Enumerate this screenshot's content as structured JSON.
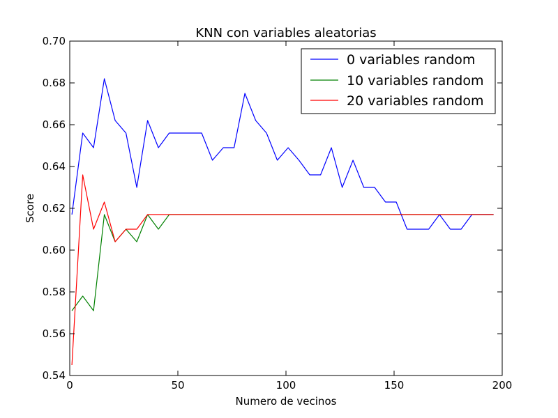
{
  "chart_data": {
    "type": "line",
    "title": "KNN con variables aleatorias",
    "xlabel": "Numero de vecinos",
    "ylabel": "Score",
    "xlim": [
      0,
      200
    ],
    "ylim": [
      0.54,
      0.7
    ],
    "xticks": [
      0,
      50,
      100,
      150,
      200
    ],
    "xtick_labels": [
      "0",
      "50",
      "100",
      "150",
      "200"
    ],
    "yticks": [
      0.54,
      0.56,
      0.58,
      0.6,
      0.62,
      0.64,
      0.66,
      0.68,
      0.7
    ],
    "ytick_labels": [
      "0.54",
      "0.56",
      "0.58",
      "0.60",
      "0.62",
      "0.64",
      "0.66",
      "0.68",
      "0.70"
    ],
    "grid": false,
    "legend_position": "top-right",
    "x": [
      1,
      6,
      11,
      16,
      21,
      26,
      31,
      36,
      41,
      46,
      51,
      56,
      61,
      66,
      71,
      76,
      81,
      86,
      91,
      96,
      101,
      106,
      111,
      116,
      121,
      126,
      131,
      136,
      141,
      146,
      151,
      156,
      161,
      166,
      171,
      176,
      181,
      186,
      191,
      196
    ],
    "series": [
      {
        "name": "0 variables random",
        "color": "#0000ff",
        "values": [
          0.617,
          0.656,
          0.649,
          0.682,
          0.662,
          0.656,
          0.63,
          0.662,
          0.649,
          0.656,
          0.656,
          0.656,
          0.656,
          0.643,
          0.649,
          0.649,
          0.675,
          0.662,
          0.656,
          0.643,
          0.649,
          0.643,
          0.636,
          0.636,
          0.649,
          0.63,
          0.643,
          0.63,
          0.63,
          0.623,
          0.623,
          0.61,
          0.61,
          0.61,
          0.617,
          0.61,
          0.61,
          0.617,
          0.617,
          0.617
        ]
      },
      {
        "name": "10 variables random",
        "color": "#008000",
        "values": [
          0.571,
          0.578,
          0.571,
          0.617,
          0.604,
          0.61,
          0.604,
          0.617,
          0.61,
          0.617,
          0.617,
          0.617,
          0.617,
          0.617,
          0.617,
          0.617,
          0.617,
          0.617,
          0.617,
          0.617,
          0.617,
          0.617,
          0.617,
          0.617,
          0.617,
          0.617,
          0.617,
          0.617,
          0.617,
          0.617,
          0.617,
          0.617,
          0.617,
          0.617,
          0.617,
          0.617,
          0.617,
          0.617,
          0.617,
          0.617
        ]
      },
      {
        "name": "20 variables random",
        "color": "#ff0000",
        "values": [
          0.545,
          0.636,
          0.61,
          0.623,
          0.604,
          0.61,
          0.61,
          0.617,
          0.617,
          0.617,
          0.617,
          0.617,
          0.617,
          0.617,
          0.617,
          0.617,
          0.617,
          0.617,
          0.617,
          0.617,
          0.617,
          0.617,
          0.617,
          0.617,
          0.617,
          0.617,
          0.617,
          0.617,
          0.617,
          0.617,
          0.617,
          0.617,
          0.617,
          0.617,
          0.617,
          0.617,
          0.617,
          0.617,
          0.617,
          0.617
        ]
      }
    ]
  }
}
